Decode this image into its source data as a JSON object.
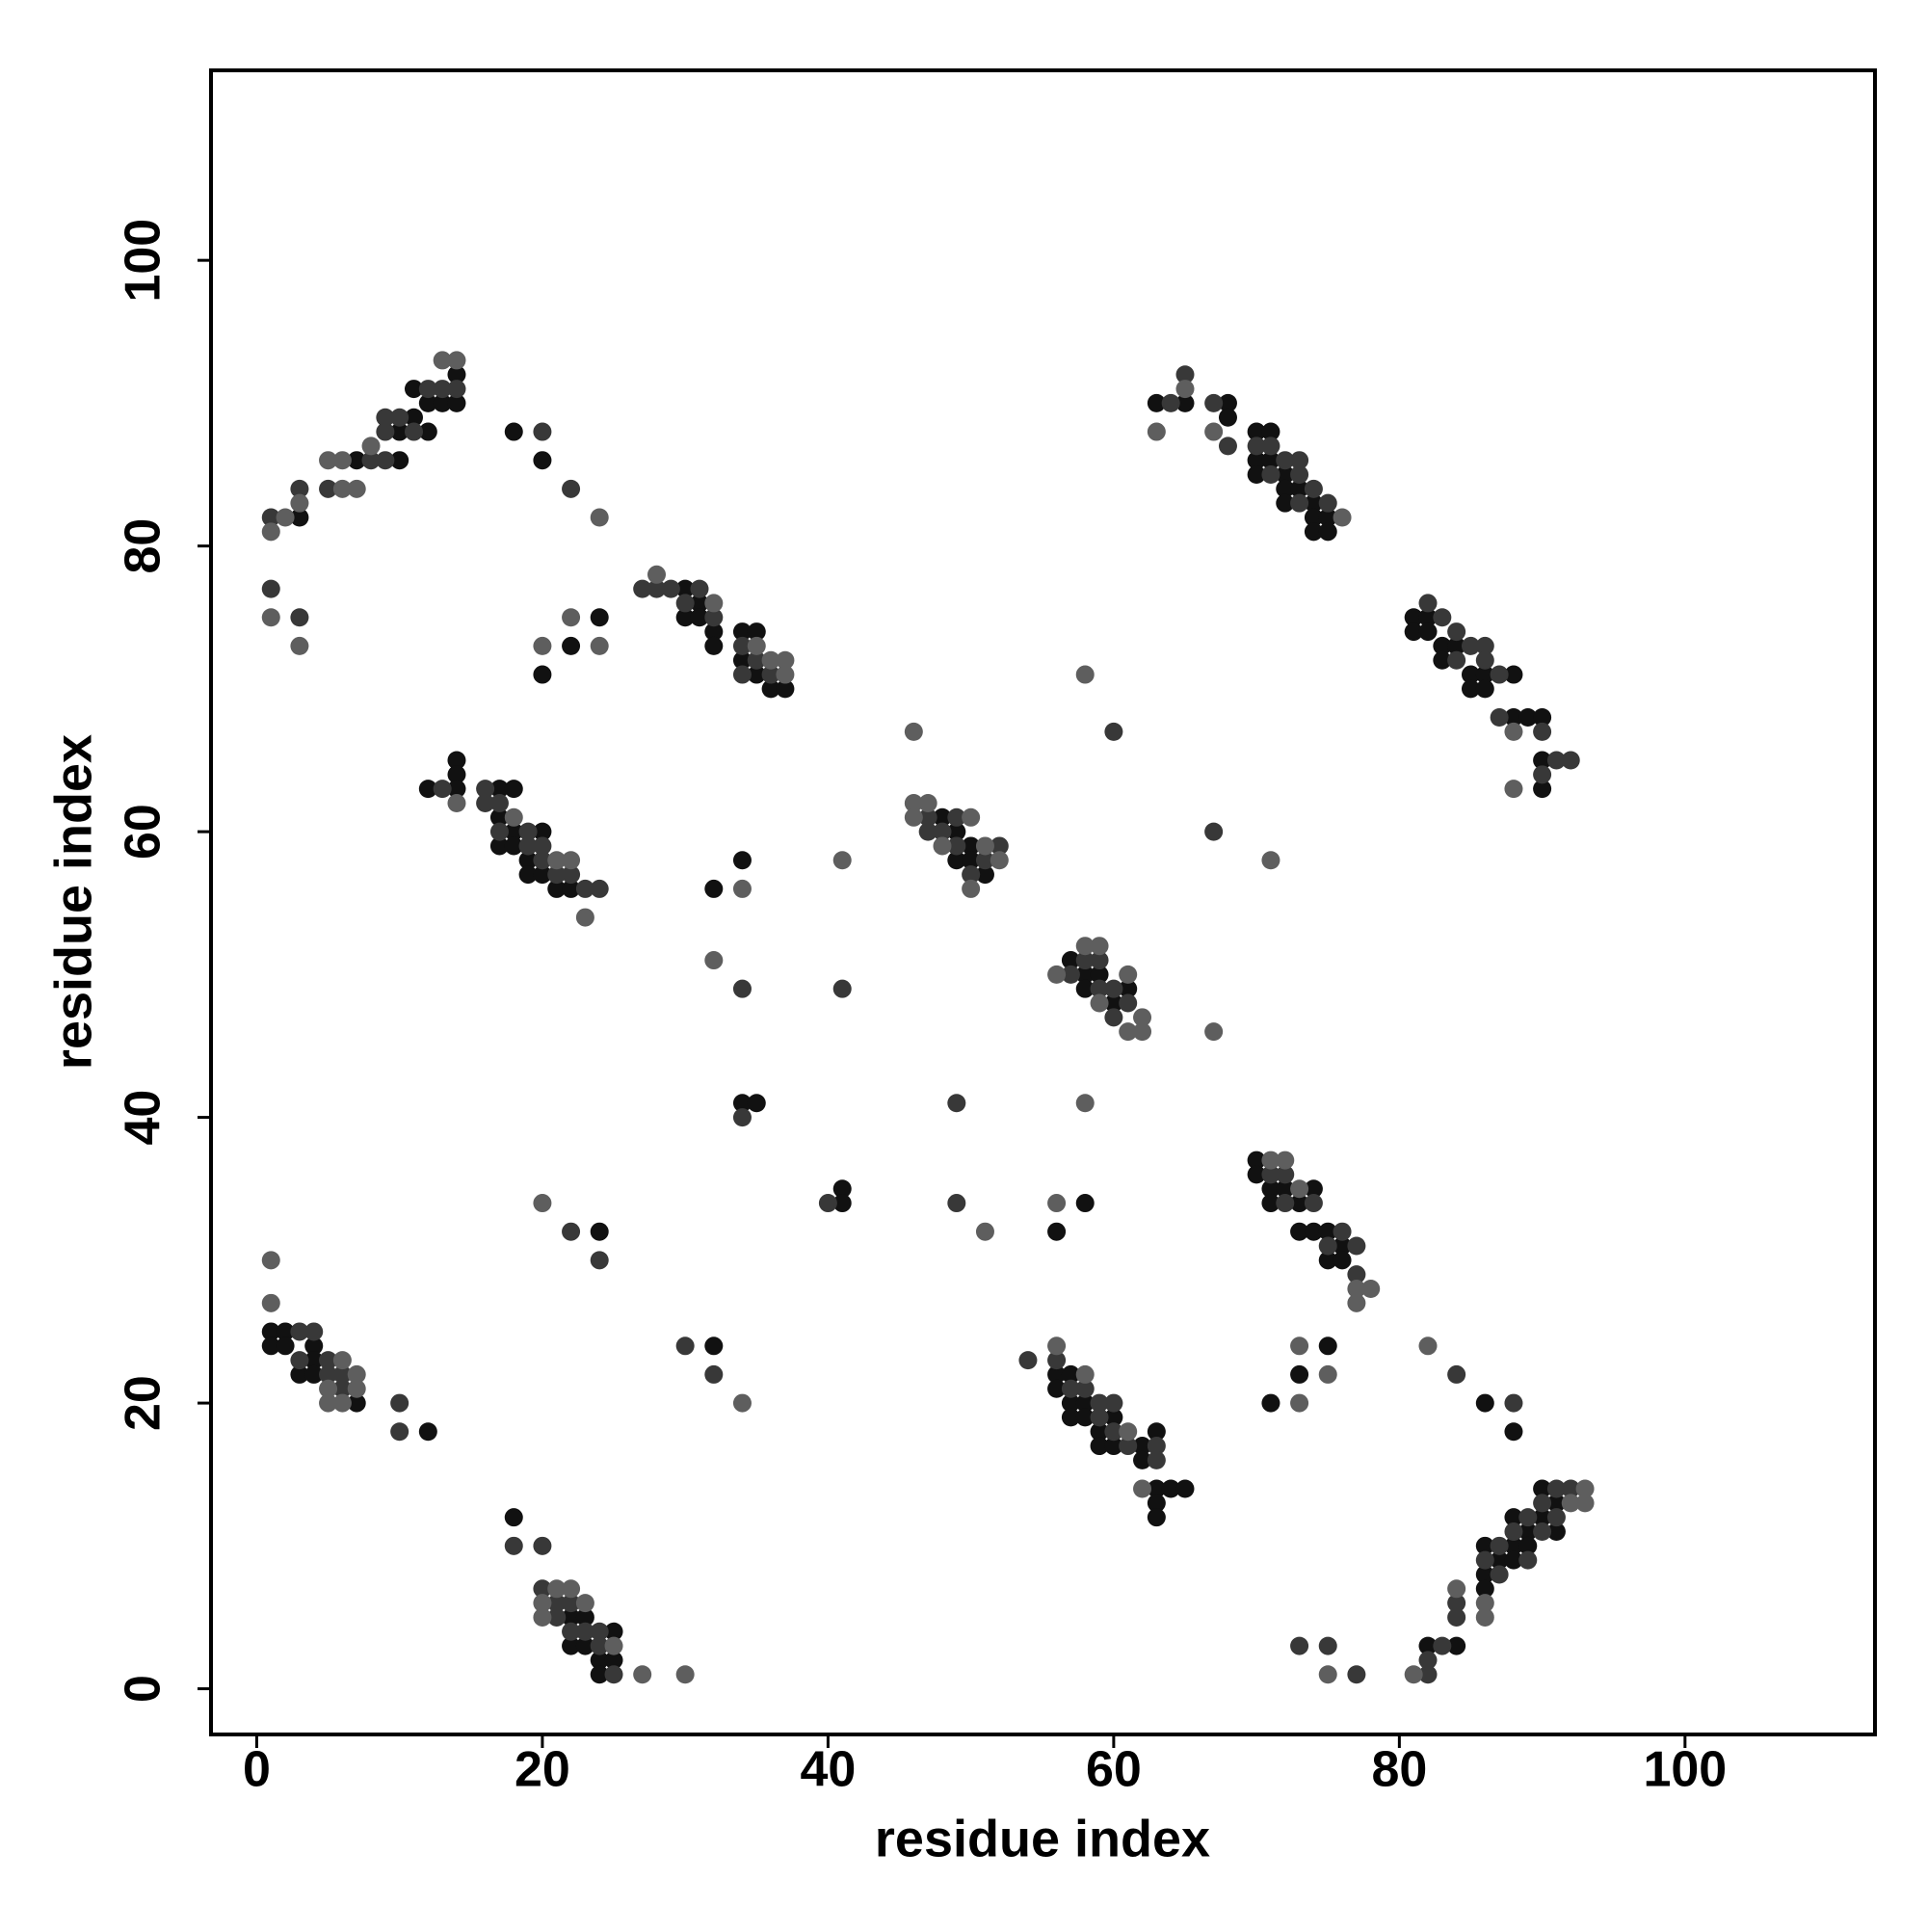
{
  "chart_data": {
    "type": "scatter",
    "x_label": "residue index",
    "y_label": "residue index",
    "xlim": [
      -3.2,
      113.3
    ],
    "ylim": [
      -3.2,
      113.3
    ],
    "xticks": [
      0,
      20,
      40,
      60,
      80,
      100
    ],
    "yticks": [
      0,
      20,
      40,
      60,
      80,
      100
    ],
    "grid": false,
    "series": [
      {
        "color": "#111111",
        "x": [
          3,
          7,
          10,
          10,
          11,
          12,
          12,
          11,
          13,
          14,
          14,
          18,
          20,
          20,
          22,
          24,
          30,
          30,
          31,
          31,
          32,
          32,
          34,
          34,
          35,
          35,
          36,
          37,
          12,
          14,
          14,
          14,
          17,
          17,
          17,
          18,
          18,
          18,
          19,
          19,
          20,
          20,
          21,
          22,
          32,
          34,
          34,
          35,
          41,
          41,
          58,
          56,
          48,
          49,
          49,
          50,
          50,
          51,
          57,
          58,
          58,
          59,
          60,
          61,
          1,
          1,
          2,
          2,
          3,
          4,
          4,
          4,
          7,
          12,
          24,
          32,
          18,
          22,
          22,
          23,
          23,
          24,
          24,
          25,
          25,
          56,
          56,
          57,
          57,
          57,
          58,
          58,
          59,
          59,
          60,
          60,
          62,
          62,
          63,
          63,
          63,
          63,
          64,
          65,
          70,
          70,
          71,
          71,
          72,
          73,
          73,
          74,
          74,
          75,
          75,
          76,
          76,
          71,
          73,
          75,
          86,
          88,
          82,
          84,
          86,
          86,
          86,
          87,
          88,
          88,
          88,
          89,
          89,
          90,
          90,
          91,
          91,
          63,
          65,
          68,
          68,
          70,
          70,
          70,
          71,
          71,
          72,
          72,
          72,
          73,
          74,
          74,
          74,
          75,
          75,
          81,
          81,
          82,
          82,
          83,
          83,
          84,
          85,
          85,
          86,
          86,
          88,
          88,
          89,
          90,
          90,
          90
        ],
        "values": [
          82,
          86,
          86,
          88,
          89,
          88,
          90,
          91,
          90,
          92,
          90,
          88,
          86,
          71,
          73,
          75,
          77,
          75,
          76,
          75,
          74,
          73,
          74,
          72,
          74,
          71,
          70,
          70,
          63,
          65,
          64,
          63,
          63,
          61,
          59,
          63,
          60,
          59,
          58,
          57,
          60,
          57,
          56,
          56,
          56,
          58,
          41,
          41,
          35,
          34,
          34,
          32,
          61,
          60,
          58,
          59,
          58,
          57,
          51,
          50,
          49,
          50,
          48,
          49,
          25,
          24,
          25,
          24,
          22,
          24,
          23,
          22,
          20,
          18,
          32,
          24,
          12,
          5,
          3,
          5,
          3,
          2,
          1,
          4,
          2,
          22,
          21,
          22,
          20,
          19,
          20,
          19,
          18,
          17,
          19,
          17,
          17,
          16,
          18,
          14,
          13,
          12,
          14,
          14,
          37,
          36,
          35,
          34,
          35,
          34,
          32,
          35,
          32,
          32,
          30,
          31,
          30,
          20,
          22,
          24,
          20,
          18,
          3,
          3,
          10,
          8,
          7,
          9,
          12,
          10,
          9,
          11,
          10,
          14,
          12,
          13,
          11,
          90,
          90,
          90,
          89,
          88,
          86,
          85,
          88,
          86,
          85,
          84,
          83,
          84,
          83,
          82,
          81,
          82,
          81,
          75,
          74,
          75,
          74,
          73,
          72,
          73,
          71,
          70,
          71,
          70,
          71,
          68,
          68,
          68,
          65,
          63
        ]
      },
      {
        "color": "#383838",
        "x": [
          1,
          3,
          5,
          8,
          9,
          9,
          9,
          10,
          11,
          12,
          13,
          14,
          20,
          22,
          1,
          3,
          27,
          28,
          29,
          30,
          31,
          32,
          34,
          34,
          35,
          36,
          13,
          16,
          16,
          17,
          17,
          19,
          19,
          20,
          20,
          21,
          22,
          23,
          24,
          34,
          41,
          34,
          40,
          49,
          49,
          60,
          67,
          47,
          47,
          48,
          49,
          49,
          50,
          51,
          52,
          57,
          58,
          59,
          59,
          60,
          60,
          61,
          3,
          3,
          4,
          5,
          5,
          6,
          6,
          10,
          10,
          22,
          24,
          30,
          32,
          18,
          20,
          20,
          21,
          21,
          22,
          22,
          23,
          24,
          24,
          25,
          54,
          56,
          57,
          58,
          59,
          59,
          60,
          60,
          61,
          63,
          63,
          71,
          72,
          72,
          74,
          75,
          76,
          77,
          77,
          84,
          88,
          73,
          75,
          77,
          82,
          82,
          83,
          84,
          84,
          86,
          87,
          87,
          88,
          89,
          89,
          90,
          90,
          91,
          91,
          92,
          64,
          65,
          67,
          68,
          70,
          71,
          71,
          72,
          73,
          73,
          73,
          74,
          75,
          82,
          83,
          84,
          84,
          85,
          86,
          86,
          87,
          87,
          90,
          90,
          91,
          92
        ],
        "values": [
          82,
          84,
          84,
          86,
          86,
          88,
          89,
          89,
          88,
          91,
          91,
          91,
          88,
          84,
          77,
          75,
          77,
          77,
          77,
          76,
          77,
          75,
          73,
          71,
          72,
          71,
          63,
          63,
          62,
          62,
          60,
          60,
          59,
          59,
          58,
          57,
          57,
          56,
          56,
          49,
          49,
          40,
          34,
          41,
          34,
          67,
          60,
          61,
          60,
          60,
          61,
          59,
          57,
          58,
          59,
          50,
          51,
          51,
          49,
          49,
          47,
          48,
          25,
          23,
          25,
          23,
          22,
          22,
          21,
          20,
          18,
          32,
          30,
          24,
          22,
          10,
          10,
          7,
          6,
          5,
          6,
          4,
          4,
          4,
          3,
          1,
          23,
          23,
          21,
          21,
          20,
          19,
          20,
          18,
          17,
          17,
          16,
          36,
          36,
          34,
          34,
          31,
          32,
          31,
          29,
          22,
          20,
          3,
          3,
          1,
          1,
          2,
          3,
          6,
          5,
          9,
          10,
          8,
          11,
          12,
          9,
          13,
          11,
          14,
          12,
          14,
          90,
          92,
          90,
          87,
          87,
          87,
          85,
          86,
          86,
          85,
          83,
          84,
          83,
          76,
          75,
          74,
          72,
          73,
          73,
          72,
          71,
          68,
          67,
          64,
          65,
          65
        ]
      },
      {
        "color": "#5e5e5e",
        "x": [
          1,
          2,
          3,
          6,
          7,
          5,
          6,
          8,
          13,
          14,
          24,
          1,
          3,
          20,
          22,
          24,
          28,
          32,
          35,
          36,
          37,
          37,
          14,
          18,
          21,
          22,
          23,
          34,
          32,
          41,
          46,
          51,
          58,
          71,
          67,
          58,
          56,
          46,
          46,
          47,
          48,
          50,
          50,
          51,
          52,
          56,
          58,
          59,
          59,
          61,
          61,
          62,
          62,
          1,
          1,
          5,
          5,
          6,
          6,
          7,
          7,
          20,
          34,
          20,
          20,
          21,
          22,
          23,
          25,
          27,
          30,
          56,
          58,
          61,
          62,
          71,
          72,
          73,
          77,
          77,
          78,
          73,
          73,
          75,
          82,
          75,
          81,
          84,
          86,
          86,
          92,
          93,
          93,
          63,
          65,
          67,
          76,
          88,
          88
        ],
        "values": [
          81,
          82,
          83,
          84,
          84,
          86,
          86,
          87,
          93,
          93,
          82,
          75,
          73,
          73,
          75,
          73,
          78,
          76,
          73,
          72,
          72,
          71,
          62,
          61,
          58,
          58,
          54,
          56,
          51,
          58,
          67,
          32,
          71,
          58,
          46,
          41,
          34,
          62,
          61,
          62,
          59,
          61,
          56,
          59,
          58,
          50,
          52,
          52,
          48,
          50,
          46,
          47,
          46,
          30,
          27,
          21,
          20,
          23,
          20,
          22,
          21,
          34,
          20,
          6,
          5,
          7,
          7,
          6,
          3,
          1,
          1,
          24,
          22,
          18,
          14,
          37,
          37,
          35,
          28,
          27,
          28,
          24,
          20,
          22,
          24,
          1,
          1,
          7,
          6,
          5,
          13,
          14,
          13,
          88,
          91,
          88,
          82,
          67,
          63
        ]
      }
    ]
  }
}
